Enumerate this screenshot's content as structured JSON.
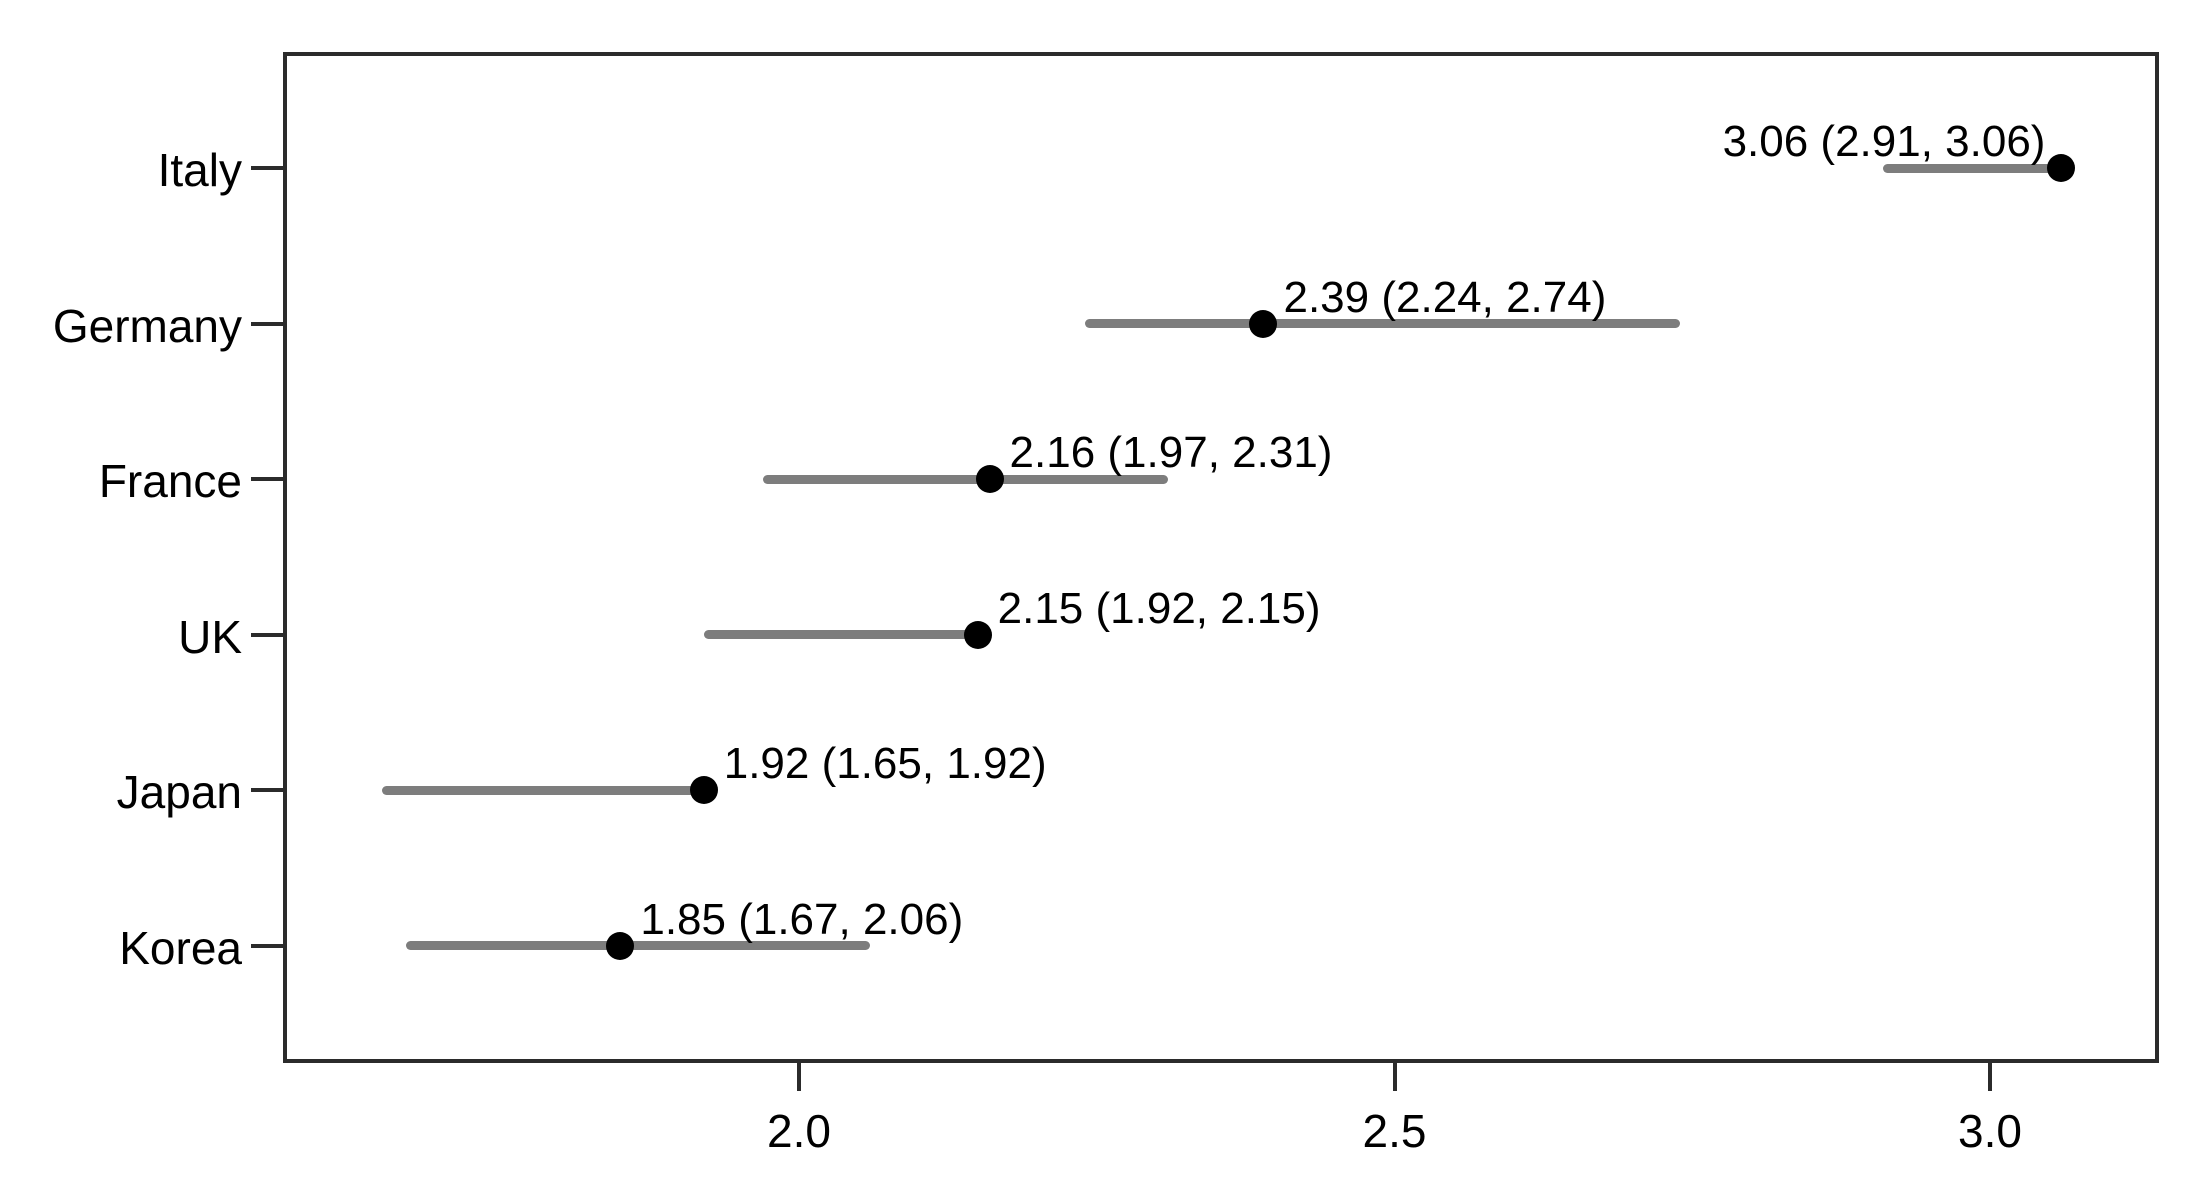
{
  "chart_data": {
    "type": "scatter",
    "subtype": "dot-and-confidence-interval-forest-plot",
    "title": "",
    "xlabel": "",
    "ylabel": "",
    "categories": [
      "Italy",
      "Germany",
      "France",
      "UK",
      "Japan",
      "Korea"
    ],
    "series": [
      {
        "name": "estimate",
        "values": [
          3.06,
          2.39,
          2.16,
          2.15,
          1.92,
          1.85
        ]
      },
      {
        "name": "ci_lower",
        "values": [
          2.91,
          2.24,
          1.97,
          1.92,
          1.65,
          1.67
        ]
      },
      {
        "name": "ci_upper",
        "values": [
          3.06,
          2.74,
          2.31,
          2.15,
          1.92,
          2.06
        ]
      }
    ],
    "point_labels": [
      "3.06 (2.91, 3.06)",
      "2.39 (2.24, 2.74)",
      "2.16 (1.97, 2.31)",
      "2.15 (1.92, 2.15)",
      "1.92 (1.65, 1.92)",
      "1.85 (1.67, 2.06)"
    ],
    "point_label_side": [
      "left",
      "right",
      "right",
      "right",
      "right",
      "right"
    ],
    "x_ticks": [
      2.0,
      2.5,
      3.0
    ],
    "x_tick_labels": [
      "2.0",
      "2.5",
      "3.0"
    ],
    "xlim": [
      1.567,
      3.142
    ],
    "grid": false,
    "legend": "none",
    "colors": {
      "interval": "#7d7d7d",
      "point": "#000000",
      "border": "#2b2b2b",
      "text": "#000000",
      "background": "#ffffff"
    }
  }
}
